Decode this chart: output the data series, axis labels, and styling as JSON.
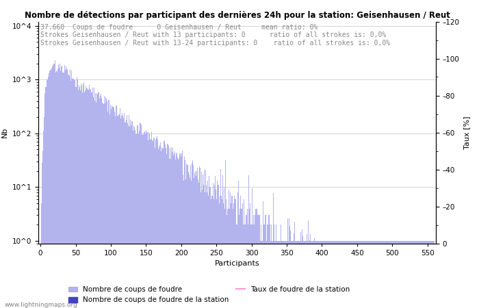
{
  "title": "Nombre de détections par participant des dernières 24h pour la station: Geisenhausen / Reut",
  "annotation_lines": [
    "37.660  Coups de foudre      0 Geisenhausen / Reut     mean ratio: 0%",
    "Strokes Geisenhausen / Reut with 13 participants: 0      ratio of all strokes is: 0,0%",
    "Strokes Geisenhausen / Reut with 13-24 participants: 0    ratio of all strokes is: 0,0%"
  ],
  "xlabel": "Participants",
  "ylabel_left": "Nb",
  "ylabel_right": "Taux [%]",
  "bar_color_main": "#b3b3ee",
  "bar_color_station": "#4444bb",
  "line_color_taux": "#ff99cc",
  "watermark": "www.lightningmaps.org",
  "legend_labels": [
    "Nombre de coups de foudre",
    "Nombre de coups de foudre de la station",
    "Taux de foudre de la station"
  ],
  "yticks_right": [
    0,
    20,
    40,
    60,
    80,
    100,
    120
  ],
  "xticks": [
    0,
    50,
    100,
    150,
    200,
    250,
    300,
    350,
    400,
    450,
    500,
    550
  ],
  "ylim_right": [
    0,
    120
  ],
  "num_participants": 560,
  "title_fontsize": 8.5,
  "annotation_fontsize": 7,
  "axis_fontsize": 8,
  "tick_fontsize": 7.5
}
